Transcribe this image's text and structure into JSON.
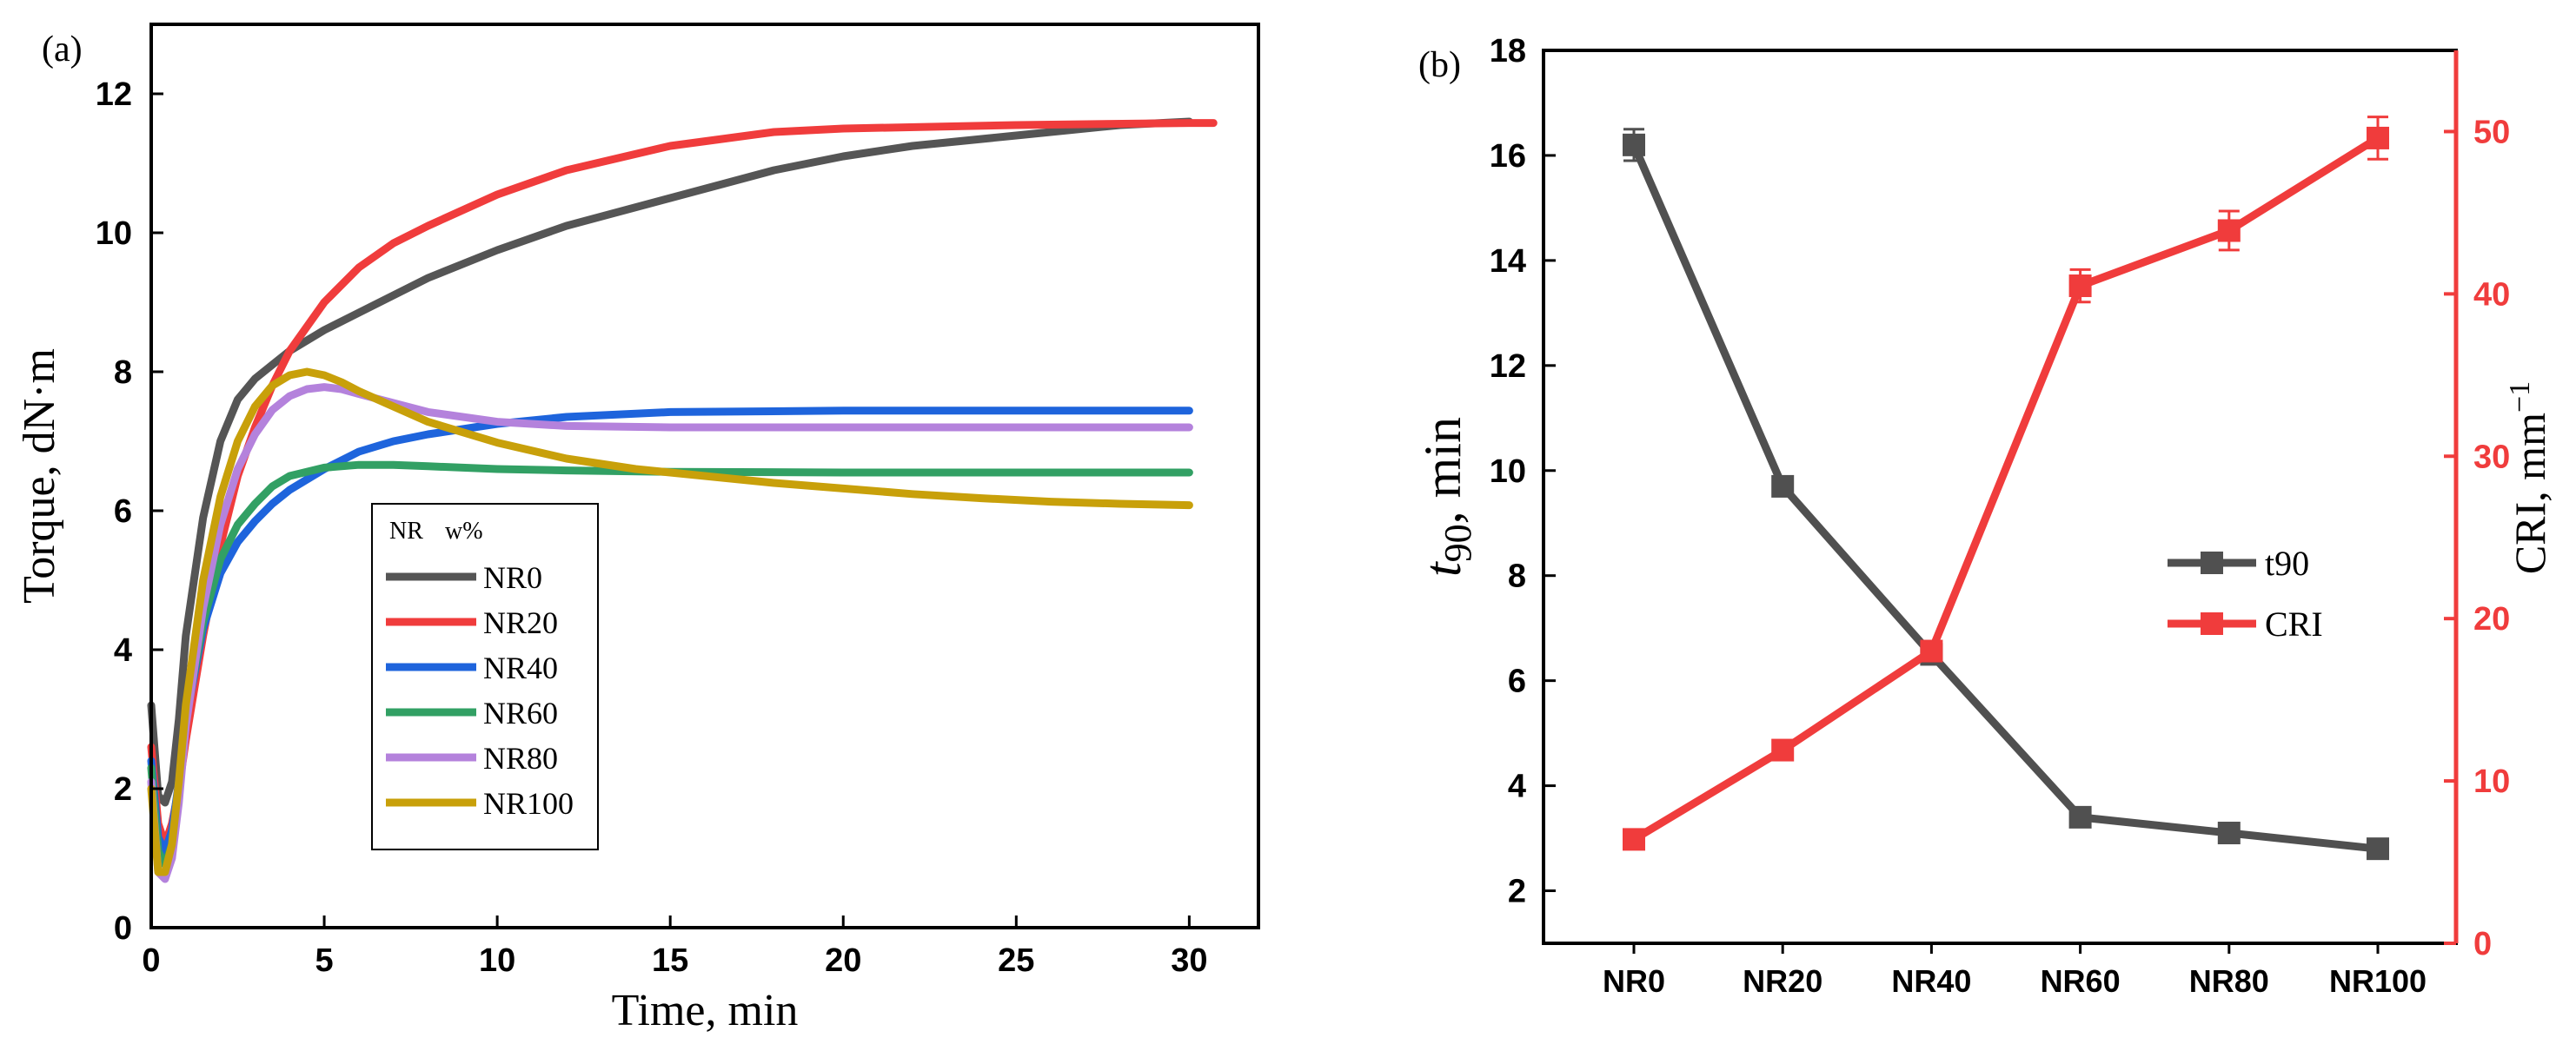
{
  "chart_data": [
    {
      "panel_label": "(a)",
      "type": "line",
      "xlabel": "Time, min",
      "ylabel": "Torque, dN·m",
      "xlim": [
        0,
        32
      ],
      "ylim": [
        0,
        13
      ],
      "xticks": [
        0,
        5,
        10,
        15,
        20,
        25,
        30
      ],
      "yticks": [
        0,
        2,
        4,
        6,
        8,
        10,
        12
      ],
      "legend": {
        "title_parts": [
          "NR",
          "w%"
        ],
        "placement": "center-left"
      },
      "series": [
        {
          "name": "NR0",
          "color": "#555555",
          "x": [
            0,
            0.2,
            0.4,
            0.6,
            0.8,
            1,
            1.5,
            2,
            2.5,
            3,
            3.5,
            4,
            5,
            6,
            7,
            8,
            10,
            12,
            15,
            18,
            20,
            22,
            25,
            28,
            30
          ],
          "y": [
            3.2,
            1.9,
            1.8,
            2.1,
            3.0,
            4.2,
            5.9,
            7.0,
            7.6,
            7.9,
            8.1,
            8.3,
            8.6,
            8.85,
            9.1,
            9.35,
            9.75,
            10.1,
            10.5,
            10.9,
            11.1,
            11.25,
            11.4,
            11.55,
            11.6
          ]
        },
        {
          "name": "NR20",
          "color": "#f03c3c",
          "x": [
            0,
            0.2,
            0.4,
            0.6,
            0.8,
            1,
            1.5,
            2,
            2.5,
            3,
            3.5,
            4,
            5,
            6,
            7,
            8,
            10,
            12,
            15,
            18,
            20,
            25,
            30,
            30.7
          ],
          "y": [
            2.6,
            1.5,
            1.2,
            1.5,
            2.0,
            2.7,
            4.2,
            5.5,
            6.5,
            7.2,
            7.8,
            8.3,
            9.0,
            9.5,
            9.85,
            10.1,
            10.55,
            10.9,
            11.25,
            11.45,
            11.5,
            11.55,
            11.58,
            11.58
          ]
        },
        {
          "name": "NR40",
          "color": "#1e64dc",
          "x": [
            0,
            0.2,
            0.4,
            0.6,
            0.8,
            1,
            1.5,
            2,
            2.5,
            3,
            3.5,
            4,
            5,
            6,
            7,
            8,
            10,
            12,
            15,
            20,
            25,
            30
          ],
          "y": [
            2.4,
            1.3,
            1.1,
            1.4,
            2.1,
            3.0,
            4.3,
            5.1,
            5.55,
            5.85,
            6.1,
            6.3,
            6.6,
            6.85,
            7.0,
            7.1,
            7.25,
            7.35,
            7.42,
            7.44,
            7.44,
            7.44
          ]
        },
        {
          "name": "NR60",
          "color": "#32a064",
          "x": [
            0,
            0.2,
            0.4,
            0.6,
            0.8,
            1,
            1.5,
            2,
            2.5,
            3,
            3.5,
            4,
            5,
            6,
            7,
            8,
            10,
            12,
            15,
            20,
            25,
            30
          ],
          "y": [
            2.3,
            1.1,
            0.9,
            1.2,
            2.0,
            3.0,
            4.4,
            5.3,
            5.8,
            6.1,
            6.35,
            6.5,
            6.62,
            6.66,
            6.66,
            6.64,
            6.6,
            6.58,
            6.56,
            6.55,
            6.55,
            6.55
          ]
        },
        {
          "name": "NR80",
          "color": "#b482dc",
          "x": [
            0,
            0.2,
            0.4,
            0.6,
            0.8,
            1,
            1.5,
            2,
            2.5,
            3,
            3.5,
            4,
            4.5,
            5,
            5.5,
            6,
            7,
            8,
            10,
            12,
            15,
            20,
            25,
            30
          ],
          "y": [
            2.1,
            0.8,
            0.7,
            1.0,
            1.8,
            2.9,
            4.6,
            5.8,
            6.6,
            7.1,
            7.45,
            7.65,
            7.75,
            7.78,
            7.75,
            7.68,
            7.55,
            7.42,
            7.28,
            7.22,
            7.2,
            7.2,
            7.2,
            7.2
          ]
        },
        {
          "name": "NR100",
          "color": "#c8a00a",
          "x": [
            0,
            0.2,
            0.4,
            0.6,
            0.8,
            1,
            1.5,
            2,
            2.5,
            3,
            3.5,
            4,
            4.5,
            5,
            5.5,
            6,
            7,
            8,
            10,
            12,
            14,
            16,
            18,
            20,
            22,
            24,
            26,
            28,
            30
          ],
          "y": [
            2.0,
            0.8,
            0.8,
            1.2,
            2.1,
            3.2,
            5.0,
            6.2,
            7.0,
            7.5,
            7.8,
            7.95,
            8.0,
            7.95,
            7.85,
            7.72,
            7.5,
            7.28,
            6.98,
            6.75,
            6.6,
            6.5,
            6.4,
            6.32,
            6.24,
            6.18,
            6.13,
            6.1,
            6.08
          ]
        }
      ]
    },
    {
      "panel_label": "(b)",
      "type": "line",
      "categories": [
        "NR0",
        "NR20",
        "NR40",
        "NR60",
        "NR80",
        "NR100"
      ],
      "ylabel_left": {
        "main": "t",
        "sub": "90",
        "rest": ", min"
      },
      "ylabel_right": {
        "main": "CRI, mm",
        "sup": "−1"
      },
      "ylim_left": [
        1,
        18
      ],
      "ylim_right": [
        0,
        55
      ],
      "yticks_left": [
        2,
        4,
        6,
        8,
        10,
        12,
        14,
        16,
        18
      ],
      "yticks_right": [
        0,
        10,
        20,
        30,
        40,
        50
      ],
      "legend": {
        "placement": "center-right"
      },
      "series": [
        {
          "name": "t90",
          "axis": "left",
          "color": "#505050",
          "values": [
            16.2,
            9.7,
            6.5,
            3.4,
            3.1,
            2.8
          ],
          "errors": [
            0.3,
            0.15,
            0.15,
            0.1,
            0.1,
            0.1
          ]
        },
        {
          "name": "CRI",
          "axis": "right",
          "color": "#f03c3c",
          "values": [
            6.4,
            11.9,
            18.0,
            40.5,
            43.9,
            49.6
          ],
          "errors": [
            0.3,
            0.4,
            0.6,
            1.0,
            1.2,
            1.3
          ]
        }
      ]
    }
  ]
}
